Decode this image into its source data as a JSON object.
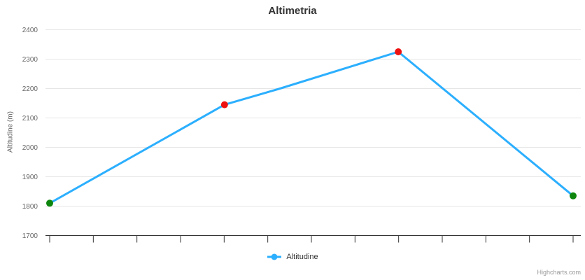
{
  "chart_data": {
    "type": "line",
    "title": "Altimetria",
    "xlabel": "",
    "ylabel": "Altitudine (m)",
    "ylim": [
      1700,
      2400
    ],
    "yticks": [
      1700,
      1800,
      1900,
      2000,
      2100,
      2200,
      2300,
      2400
    ],
    "xticks_count": 13,
    "x_axis_labels": "none",
    "grid": true,
    "legend_position": "bottom-center",
    "series": [
      {
        "name": "Altitudine",
        "color": "#2caffe",
        "line_width": 3,
        "points": [
          {
            "x_frac": 0.0,
            "y": 1810,
            "marker_color": "#0e860e"
          },
          {
            "x_frac": 0.334,
            "y": 2145,
            "marker_color": "#ee1111"
          },
          {
            "x_frac": 0.44,
            "y": 2200,
            "marker_color": null
          },
          {
            "x_frac": 0.666,
            "y": 2325,
            "marker_color": "#ee1111"
          },
          {
            "x_frac": 1.0,
            "y": 1835,
            "marker_color": "#0e860e"
          }
        ]
      }
    ],
    "colors": {
      "grid": "#e6e6e6",
      "axis_line": "#333333",
      "tick_label": "#666666",
      "title": "#333333",
      "legend_text": "#333333",
      "credits": "#999999",
      "background": "#ffffff"
    },
    "credits": "Highcharts.com"
  }
}
